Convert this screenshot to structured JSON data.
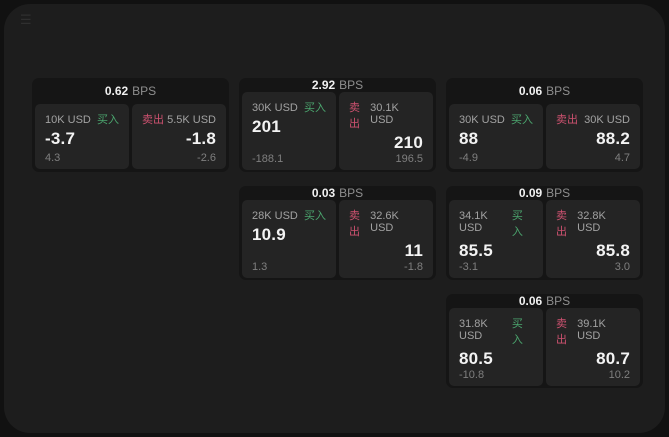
{
  "labels": {
    "bps": "BPS",
    "buy": "买入",
    "sell": "卖出"
  },
  "icons": {
    "menu": "☰"
  },
  "colors": {
    "buy_green": "#4ba56e",
    "sell_red": "#ce5270",
    "window_bg": "#1d1d1d",
    "card_bg": "#151515",
    "panel_bg": "#242424"
  },
  "cards": [
    {
      "bps": "0.62",
      "buy": {
        "size": "10K USD",
        "price": "-3.7",
        "delta": "4.3"
      },
      "sell": {
        "size": "5.5K USD",
        "price": "-1.8",
        "delta": "-2.6"
      }
    },
    {
      "bps": "2.92",
      "buy": {
        "size": "30K USD",
        "price": "201",
        "delta": "-188.1"
      },
      "sell": {
        "size": "30.1K USD",
        "price": "210",
        "delta": "196.5"
      }
    },
    {
      "bps": "0.06",
      "buy": {
        "size": "30K USD",
        "price": "88",
        "delta": "-4.9"
      },
      "sell": {
        "size": "30K USD",
        "price": "88.2",
        "delta": "4.7"
      }
    },
    {
      "bps": "0.03",
      "buy": {
        "size": "28K USD",
        "price": "10.9",
        "delta": "1.3"
      },
      "sell": {
        "size": "32.6K USD",
        "price": "11",
        "delta": "-1.8"
      }
    },
    {
      "bps": "0.09",
      "buy": {
        "size": "34.1K USD",
        "price": "85.5",
        "delta": "-3.1"
      },
      "sell": {
        "size": "32.8K USD",
        "price": "85.8",
        "delta": "3.0"
      }
    },
    {
      "bps": "0.06",
      "buy": {
        "size": "31.8K USD",
        "price": "80.5",
        "delta": "-10.8"
      },
      "sell": {
        "size": "39.1K USD",
        "price": "80.7",
        "delta": "10.2"
      }
    }
  ]
}
